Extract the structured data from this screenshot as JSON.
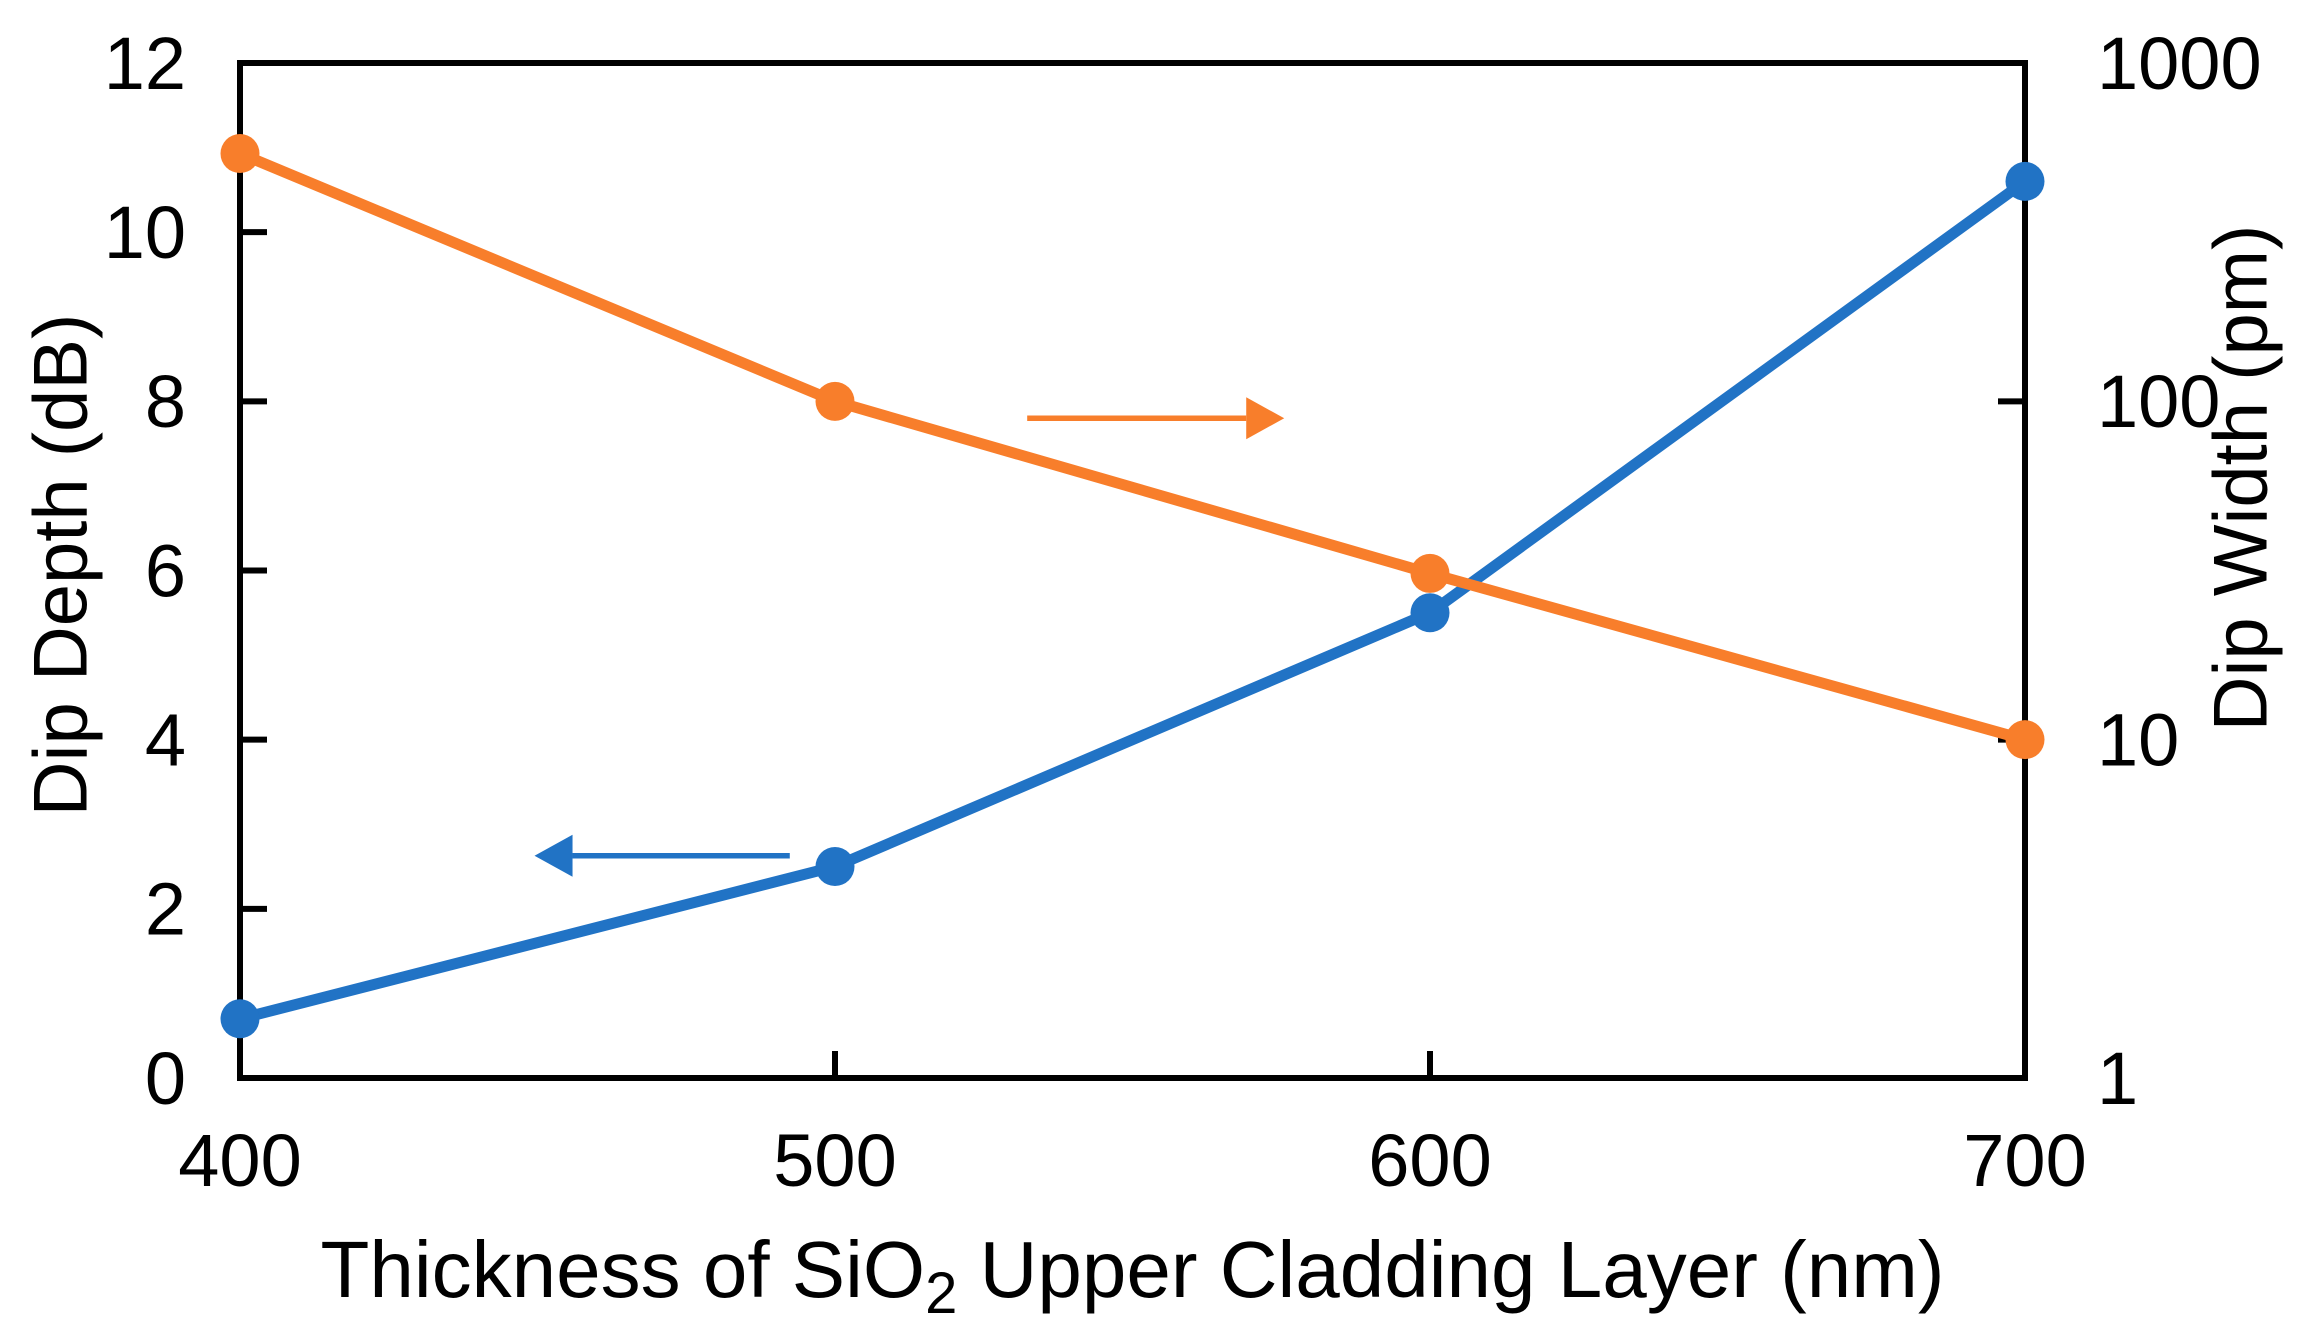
{
  "figure": {
    "background": "#FFFFFF",
    "axis_color": "#000000"
  },
  "chart_data": {
    "type": "line",
    "title": "",
    "grid": false,
    "legend": false,
    "x": [
      400,
      500,
      600,
      700
    ],
    "x_axis": {
      "label_full": "Thickness of SiO2 Upper Cladding Layer (nm)",
      "label_pre_sub": "Thickness of SiO",
      "label_sub": "2",
      "label_post_sub": " Upper Cladding Layer (nm)",
      "ticks": [
        "400",
        "500",
        "600",
        "700"
      ],
      "lim": [
        400,
        700
      ],
      "scale": "linear"
    },
    "left_axis": {
      "label": "Dip Depth (dB)",
      "ticks": [
        "0",
        "2",
        "4",
        "6",
        "8",
        "10",
        "12"
      ],
      "tick_values": [
        0,
        2,
        4,
        6,
        8,
        10,
        12
      ],
      "lim": [
        0,
        12
      ],
      "scale": "linear"
    },
    "right_axis": {
      "label": "Dip Width (pm)",
      "ticks": [
        "1",
        "10",
        "100",
        "1000"
      ],
      "tick_values": [
        1,
        10,
        100,
        1000
      ],
      "lim": [
        1,
        1000
      ],
      "scale": "log"
    },
    "series": [
      {
        "name": "Dip Depth",
        "axis": "left",
        "color": "#2173C5",
        "marker": "circle",
        "values": [
          0.7,
          2.5,
          5.5,
          10.6
        ]
      },
      {
        "name": "Dip Width",
        "axis": "right",
        "color": "#F87E2B",
        "marker": "circle",
        "values": [
          540,
          100,
          31,
          10
        ]
      }
    ],
    "annotations": [
      {
        "type": "arrow",
        "series": "Dip Depth",
        "points_to": "left-axis",
        "direction": "left",
        "color": "#2173C5",
        "tail_fx": 0.308,
        "tip_fx": 0.165,
        "fy": 0.781
      },
      {
        "type": "arrow",
        "series": "Dip Width",
        "points_to": "right-axis",
        "direction": "right",
        "color": "#F87E2B",
        "tail_fx": 0.441,
        "tip_fx": 0.585,
        "fy": 0.35
      }
    ]
  }
}
